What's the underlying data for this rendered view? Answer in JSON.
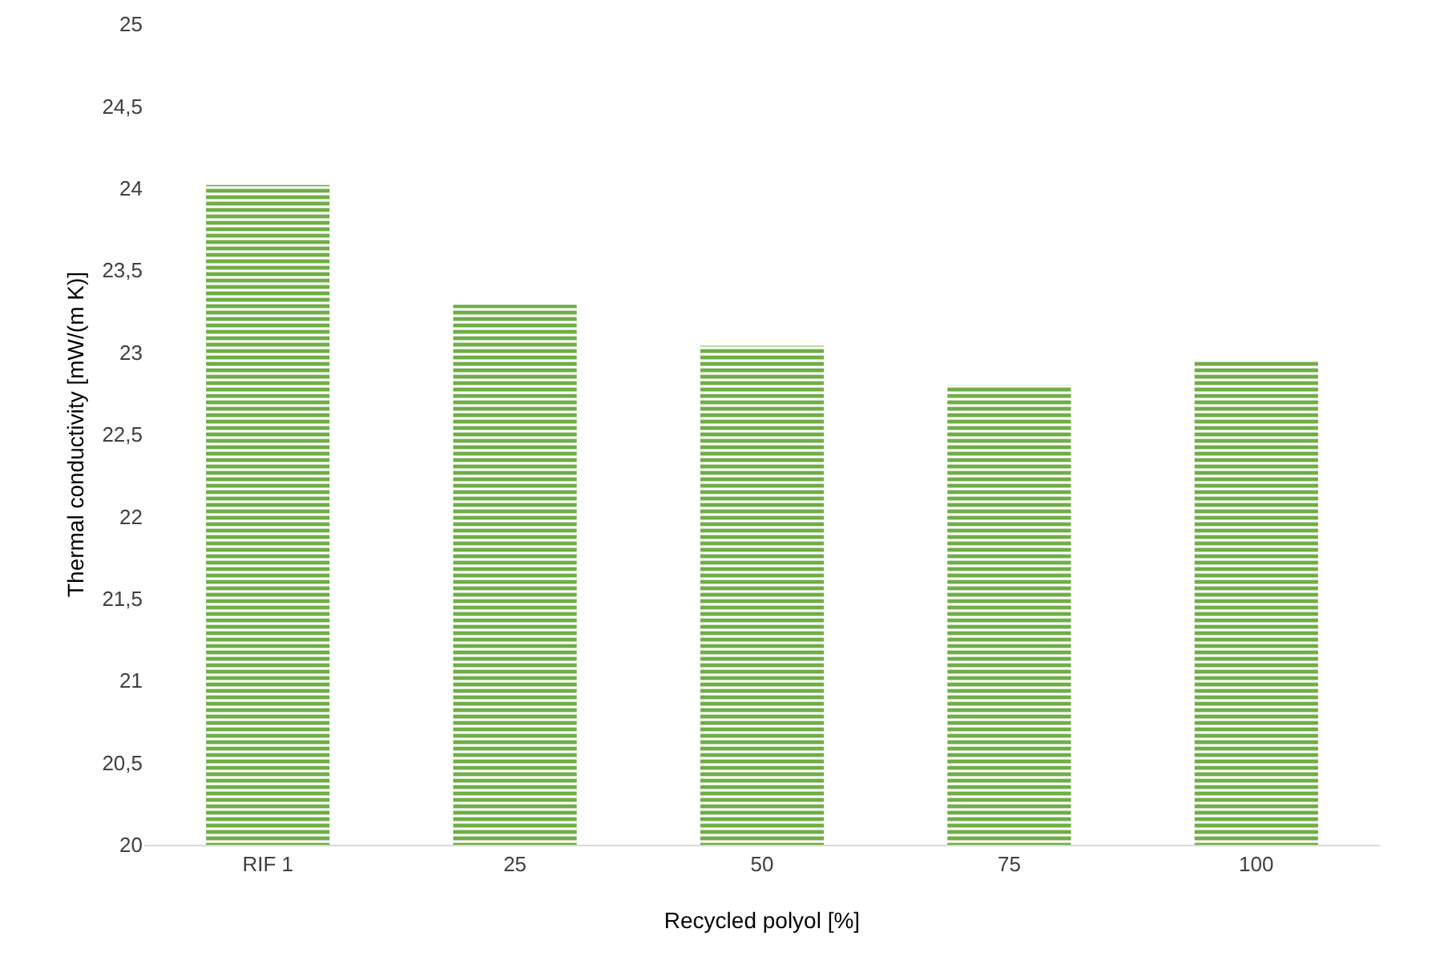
{
  "chart_data": {
    "type": "bar",
    "xlabel": "Recycled polyol [%]",
    "ylabel": "Thermal conductivity [mW/(m K)]",
    "categories": [
      "RIF 1",
      "25",
      "50",
      "75",
      "100"
    ],
    "values": [
      24.02,
      23.29,
      23.04,
      22.8,
      22.95
    ],
    "color": "#70ad47",
    "ylim": [
      20,
      25
    ],
    "yticks": [
      20,
      {
        "value": 20.5,
        "label": "20,5"
      },
      21,
      {
        "value": 21.5,
        "label": "21,5"
      },
      22,
      {
        "value": 22.5,
        "label": "22,5"
      },
      23,
      {
        "value": 23.5,
        "label": "23,5"
      },
      24,
      {
        "value": 24.5,
        "label": "24,5"
      },
      25
    ],
    "grid": false
  }
}
